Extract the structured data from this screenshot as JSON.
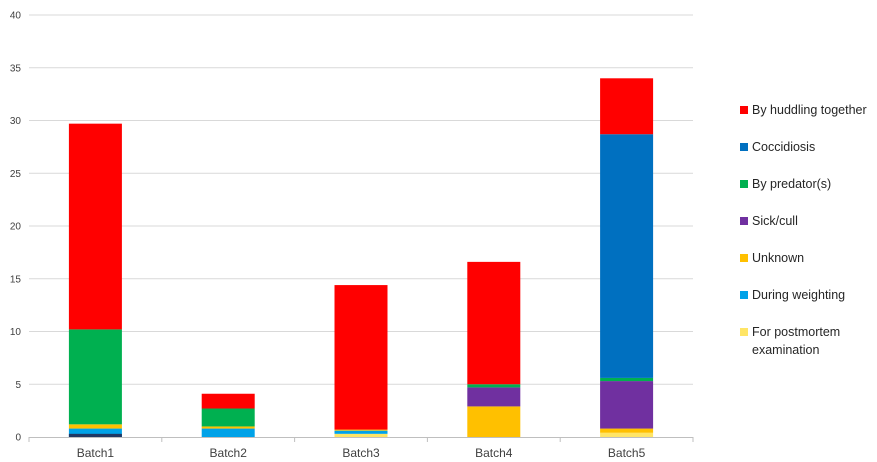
{
  "chart_data": {
    "type": "bar",
    "stacked": true,
    "title": "",
    "xlabel": "",
    "ylabel": "",
    "ylim": [
      0,
      40
    ],
    "yticks": [
      0,
      5,
      10,
      15,
      20,
      25,
      30,
      35,
      40
    ],
    "grid": true,
    "legend_position": "right",
    "categories": [
      "Batch1",
      "Batch2",
      "Batch3",
      "Batch4",
      "Batch5"
    ],
    "series": [
      {
        "name": "For postmortem examination",
        "color": "#FFE566",
        "values": [
          0.0,
          0.0,
          0.3,
          0.0,
          0.4
        ]
      },
      {
        "name": "During weighting",
        "color": "#00A2E8",
        "values": [
          0.8,
          0.8,
          0.3,
          0.0,
          0.0
        ]
      },
      {
        "name": "Unknown",
        "color": "#FFC000",
        "values": [
          0.4,
          0.2,
          0.1,
          2.9,
          0.4
        ]
      },
      {
        "name": "Sick/cull",
        "color": "#7030A0",
        "values": [
          0.0,
          0.0,
          0.0,
          1.8,
          4.5
        ]
      },
      {
        "name": "By predator(s)",
        "color": "#00B050",
        "values": [
          9.0,
          1.7,
          0.0,
          0.3,
          0.3
        ]
      },
      {
        "name": "Coccidiosis",
        "color": "#0070C0",
        "values": [
          0.0,
          0.0,
          0.0,
          0.0,
          23.1
        ]
      },
      {
        "name": "By huddling together",
        "color": "#FF0000",
        "values": [
          19.5,
          1.4,
          13.7,
          11.6,
          5.3
        ]
      }
    ],
    "extra_segments": [
      {
        "category": "Batch1",
        "color": "#203864",
        "from": 0.0,
        "to": 0.3
      }
    ],
    "legend_order": [
      "By huddling together",
      "Coccidiosis",
      "By predator(s)",
      "Sick/cull",
      "Unknown",
      "During weighting",
      "For postmortem examination"
    ]
  }
}
